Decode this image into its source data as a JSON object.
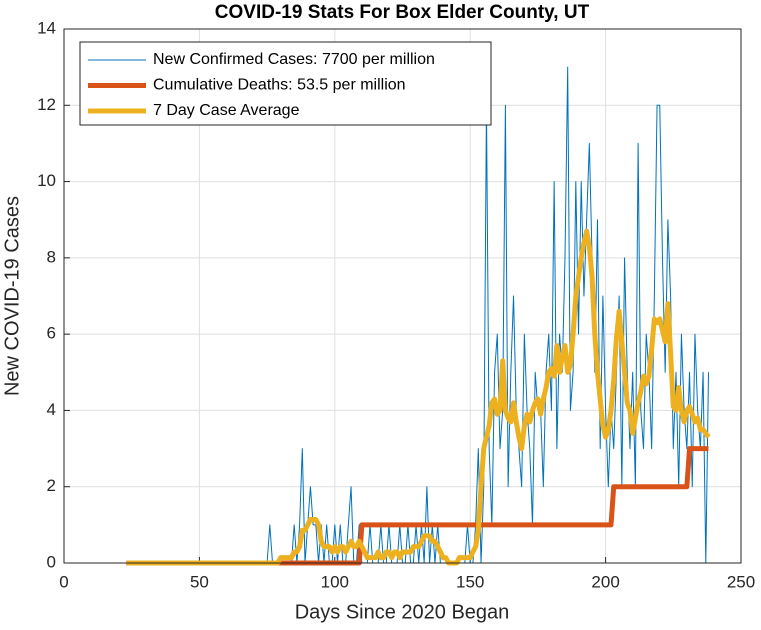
{
  "chart_data": {
    "type": "line",
    "title": "COVID-19 Stats For Box Elder County, UT",
    "xlabel": "Days Since 2020 Began",
    "ylabel": "New COVID-19 Cases",
    "xlim": [
      0,
      250
    ],
    "xticks": [
      0,
      50,
      100,
      150,
      200,
      250
    ],
    "ylim": [
      0,
      14
    ],
    "yticks": [
      0,
      2,
      4,
      6,
      8,
      10,
      12,
      14
    ],
    "grid": true,
    "legend": "northwest",
    "x": [
      23,
      24,
      25,
      26,
      27,
      28,
      29,
      30,
      31,
      32,
      33,
      34,
      35,
      36,
      37,
      38,
      39,
      40,
      41,
      42,
      43,
      44,
      45,
      46,
      47,
      48,
      49,
      50,
      51,
      52,
      53,
      54,
      55,
      56,
      57,
      58,
      59,
      60,
      61,
      62,
      63,
      64,
      65,
      66,
      67,
      68,
      69,
      70,
      71,
      72,
      73,
      74,
      75,
      76,
      77,
      78,
      79,
      80,
      81,
      82,
      83,
      84,
      85,
      86,
      87,
      88,
      89,
      90,
      91,
      92,
      93,
      94,
      95,
      96,
      97,
      98,
      99,
      100,
      101,
      102,
      103,
      104,
      105,
      106,
      107,
      108,
      109,
      110,
      111,
      112,
      113,
      114,
      115,
      116,
      117,
      118,
      119,
      120,
      121,
      122,
      123,
      124,
      125,
      126,
      127,
      128,
      129,
      130,
      131,
      132,
      133,
      134,
      135,
      136,
      137,
      138,
      139,
      140,
      141,
      142,
      143,
      144,
      145,
      146,
      147,
      148,
      149,
      150,
      151,
      152,
      153,
      154,
      155,
      156,
      157,
      158,
      159,
      160,
      161,
      162,
      163,
      164,
      165,
      166,
      167,
      168,
      169,
      170,
      171,
      172,
      173,
      174,
      175,
      176,
      177,
      178,
      179,
      180,
      181,
      182,
      183,
      184,
      185,
      186,
      187,
      188,
      189,
      190,
      191,
      192,
      193,
      194,
      195,
      196,
      197,
      198,
      199,
      200,
      201,
      202,
      203,
      204,
      205,
      206,
      207,
      208,
      209,
      210,
      211,
      212,
      213,
      214,
      215,
      216,
      217,
      218,
      219,
      220,
      221,
      222,
      223,
      224,
      225,
      226,
      227,
      228,
      229,
      230,
      231,
      232,
      233,
      234,
      235,
      236,
      237,
      238
    ],
    "series": [
      {
        "name": "New Confirmed Cases: 7700 per million",
        "color": "#0072bd",
        "width": 1,
        "values": [
          0,
          0,
          0,
          0,
          0,
          0,
          0,
          0,
          0,
          0,
          0,
          0,
          0,
          0,
          0,
          0,
          0,
          0,
          0,
          0,
          0,
          0,
          0,
          0,
          0,
          0,
          0,
          0,
          0,
          0,
          0,
          0,
          0,
          0,
          0,
          0,
          0,
          0,
          0,
          0,
          0,
          0,
          0,
          0,
          0,
          0,
          0,
          0,
          0,
          0,
          0,
          0,
          0,
          1,
          0,
          0,
          0,
          0,
          0,
          0,
          0,
          0,
          1,
          0,
          1,
          3,
          0,
          1,
          2,
          1,
          1,
          0,
          1,
          0,
          1,
          0,
          0,
          1,
          0,
          1,
          0,
          0,
          1,
          2,
          0,
          0,
          1,
          0,
          0,
          0,
          1,
          0,
          0,
          0,
          1,
          0,
          0,
          1,
          0,
          0,
          0,
          1,
          0,
          0,
          1,
          0,
          0,
          1,
          0,
          1,
          0,
          2,
          0,
          1,
          0,
          1,
          0,
          0,
          0,
          0,
          0,
          0,
          0,
          0,
          0,
          0,
          1,
          0,
          0,
          1,
          3,
          0,
          2,
          12,
          3,
          1,
          5,
          6,
          3,
          4,
          12,
          2,
          5,
          7,
          4,
          3,
          2,
          6,
          4,
          3,
          1,
          5,
          4,
          4,
          2,
          5,
          6,
          4,
          10,
          3,
          6,
          5,
          8,
          13,
          4,
          5,
          10,
          6,
          10,
          7,
          9,
          11,
          8,
          5,
          9,
          3,
          7,
          4,
          2,
          4,
          3,
          5,
          7,
          2,
          8,
          5,
          3,
          5,
          2,
          11,
          4,
          3,
          6,
          5,
          3,
          7,
          12,
          12,
          8,
          5,
          9,
          7,
          3,
          5,
          2,
          6,
          4,
          3,
          5,
          2,
          6,
          4,
          3,
          5,
          0,
          5
        ]
      },
      {
        "name": "Cumulative Deaths: 53.5 per million",
        "color": "#d95319",
        "width": 5,
        "values": [
          0,
          0,
          0,
          0,
          0,
          0,
          0,
          0,
          0,
          0,
          0,
          0,
          0,
          0,
          0,
          0,
          0,
          0,
          0,
          0,
          0,
          0,
          0,
          0,
          0,
          0,
          0,
          0,
          0,
          0,
          0,
          0,
          0,
          0,
          0,
          0,
          0,
          0,
          0,
          0,
          0,
          0,
          0,
          0,
          0,
          0,
          0,
          0,
          0,
          0,
          0,
          0,
          0,
          0,
          0,
          0,
          0,
          0,
          0,
          0,
          0,
          0,
          0,
          0,
          0,
          0,
          0,
          0,
          0,
          0,
          0,
          0,
          0,
          0,
          0,
          0,
          0,
          0,
          0,
          0,
          0,
          0,
          0,
          0,
          0,
          0,
          0,
          1,
          1,
          1,
          1,
          1,
          1,
          1,
          1,
          1,
          1,
          1,
          1,
          1,
          1,
          1,
          1,
          1,
          1,
          1,
          1,
          1,
          1,
          1,
          1,
          1,
          1,
          1,
          1,
          1,
          1,
          1,
          1,
          1,
          1,
          1,
          1,
          1,
          1,
          1,
          1,
          1,
          1,
          1,
          1,
          1,
          1,
          1,
          1,
          1,
          1,
          1,
          1,
          1,
          1,
          1,
          1,
          1,
          1,
          1,
          1,
          1,
          1,
          1,
          1,
          1,
          1,
          1,
          1,
          1,
          1,
          1,
          1,
          1,
          1,
          1,
          1,
          1,
          1,
          1,
          1,
          1,
          1,
          1,
          1,
          1,
          1,
          1,
          1,
          1,
          1,
          1,
          1,
          1,
          2,
          2,
          2,
          2,
          2,
          2,
          2,
          2,
          2,
          2,
          2,
          2,
          2,
          2,
          2,
          2,
          2,
          2,
          2,
          2,
          2,
          2,
          2,
          2,
          2,
          2,
          2,
          2,
          3,
          3,
          3,
          3,
          3,
          3,
          3,
          3
        ]
      },
      {
        "name": "7 Day Case Average",
        "color": "#edb120",
        "width": 5,
        "values": [
          0,
          0,
          0,
          0,
          0,
          0,
          0,
          0,
          0,
          0,
          0,
          0,
          0,
          0,
          0,
          0,
          0,
          0,
          0,
          0,
          0,
          0,
          0,
          0,
          0,
          0,
          0,
          0,
          0,
          0,
          0,
          0,
          0,
          0,
          0,
          0,
          0,
          0,
          0,
          0,
          0,
          0,
          0,
          0,
          0,
          0,
          0,
          0,
          0,
          0,
          0,
          0,
          0,
          0,
          0,
          0,
          0,
          0.14,
          0.14,
          0.14,
          0.14,
          0.14,
          0.29,
          0.29,
          0.43,
          0.86,
          0.86,
          1.0,
          1.14,
          1.14,
          1.14,
          1.0,
          0.57,
          0.43,
          0.43,
          0.43,
          0.29,
          0.43,
          0.29,
          0.43,
          0.43,
          0.29,
          0.43,
          0.57,
          0.43,
          0.43,
          0.57,
          0.43,
          0.29,
          0.14,
          0.14,
          0.14,
          0.14,
          0.29,
          0.14,
          0.14,
          0.29,
          0.29,
          0.14,
          0.29,
          0.29,
          0.14,
          0.29,
          0.29,
          0.29,
          0.29,
          0.43,
          0.43,
          0.43,
          0.57,
          0.71,
          0.71,
          0.71,
          0.57,
          0.57,
          0.43,
          0.29,
          0.14,
          0.14,
          0.0,
          0,
          0,
          0,
          0.14,
          0.14,
          0.14,
          0.14,
          0.14,
          0.29,
          0.43,
          0.86,
          2.0,
          3.0,
          3.3,
          3.6,
          4.2,
          4.3,
          3.9,
          4.0,
          5.3,
          4.0,
          3.8,
          3.7,
          4.2,
          3.7,
          3.3,
          3.0,
          3.6,
          3.9,
          3.7,
          4.0,
          4.2,
          4.3,
          3.9,
          4.3,
          4.6,
          5.0,
          5.1,
          4.9,
          5.7,
          5.0,
          5.4,
          5.7,
          5.0,
          5.2,
          6.0,
          7.0,
          7.5,
          8.0,
          8.4,
          8.7,
          8.3,
          7.5,
          6.0,
          5.0,
          4.3,
          3.6,
          3.3,
          3.5,
          4.0,
          4.8,
          5.9,
          6.6,
          5.8,
          5.0,
          4.2,
          4.0,
          3.4,
          3.8,
          4.2,
          4.5,
          4.9,
          4.7,
          4.9,
          5.6,
          6.4,
          6.3,
          6.4,
          6.1,
          5.8,
          6.8,
          5.5,
          4.1,
          4.0,
          4.6,
          4.0,
          3.7,
          4.0,
          4.1,
          3.9,
          3.7,
          3.8,
          3.5,
          3.5,
          3.4,
          3.3
        ]
      }
    ]
  }
}
